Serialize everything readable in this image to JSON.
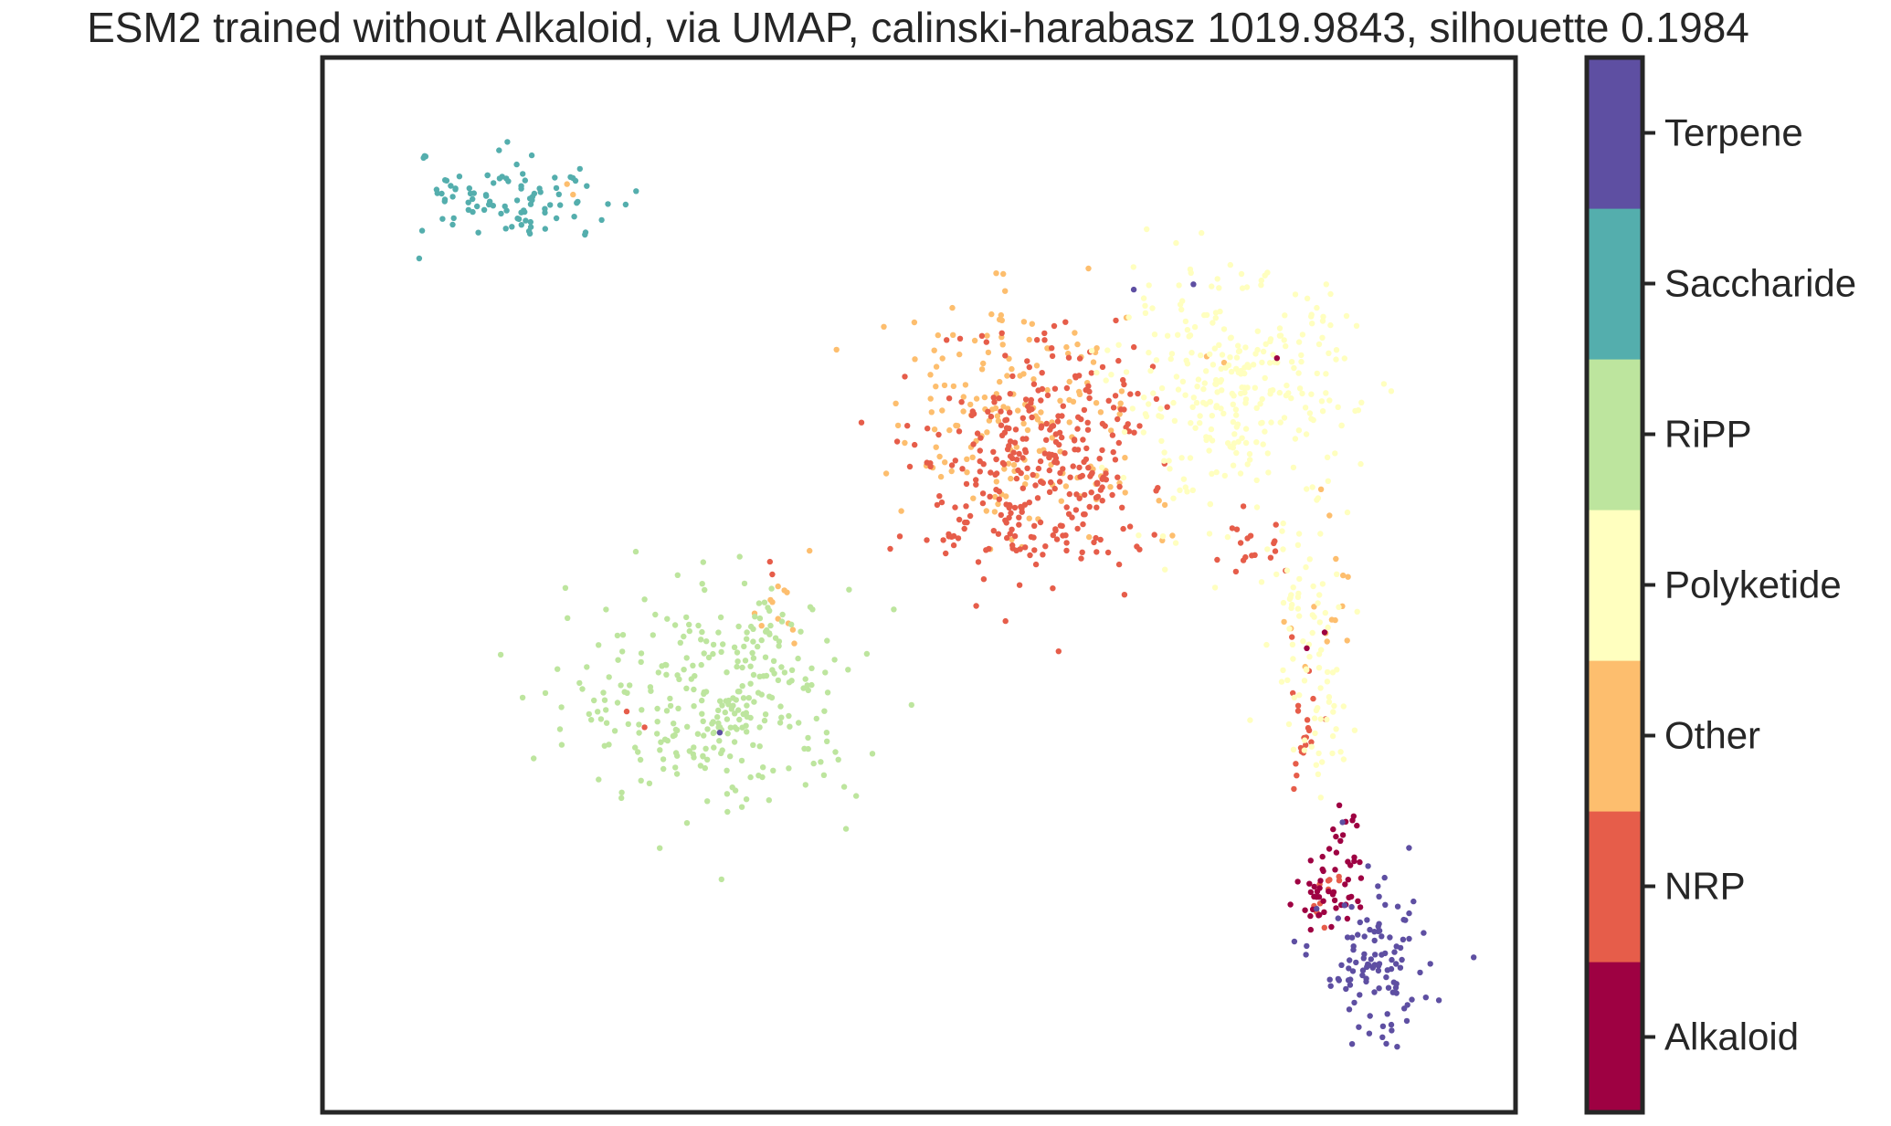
{
  "chart_data": {
    "type": "scatter",
    "title": "ESM2 trained without Alkaloid, via UMAP, calinski-harabasz 1019.9843, silhouette 0.1984",
    "xlabel": "",
    "ylabel": "",
    "xlim": [
      0,
      100
    ],
    "ylim": [
      0,
      100
    ],
    "axes_ticks": false,
    "grid": false,
    "colorbar": {
      "position": "right",
      "categories": [
        "Alkaloid",
        "NRP",
        "Other",
        "Polyketide",
        "RiPP",
        "Saccharide",
        "Terpene"
      ],
      "colors": [
        "#9e0142",
        "#e65d4a",
        "#fdbe6e",
        "#ffffbf",
        "#bde59e",
        "#54aead",
        "#5e4fa2"
      ]
    },
    "series": [
      {
        "name": "Saccharide",
        "color": "#54aead",
        "clusters": [
          {
            "cx": 8.6,
            "cy": 90.6,
            "sx": 0.2,
            "sy": 0.15,
            "n": 3
          },
          {
            "cx": 16.5,
            "cy": 86.5,
            "sx": 4.2,
            "sy": 1.8,
            "n": 90
          }
        ],
        "points": [
          [
            14.8,
            91.2
          ],
          [
            15.5,
            92.0
          ],
          [
            22.0,
            83.2
          ],
          [
            23.4,
            84.6
          ]
        ]
      },
      {
        "name": "Other",
        "color": "#fdbe6e",
        "clusters": [
          {
            "cx": 58.0,
            "cy": 68.0,
            "sx": 5.5,
            "sy": 5.0,
            "n": 140
          },
          {
            "cx": 62.0,
            "cy": 60.0,
            "sx": 4.5,
            "sy": 3.0,
            "n": 40
          },
          {
            "cx": 85.0,
            "cy": 48.0,
            "sx": 2.0,
            "sy": 4.0,
            "n": 15
          },
          {
            "cx": 38.5,
            "cy": 48.5,
            "sx": 1.2,
            "sy": 2.5,
            "n": 12
          }
        ],
        "points": [
          [
            21.0,
            87.0
          ],
          [
            20.5,
            88.0
          ]
        ]
      },
      {
        "name": "NRP",
        "color": "#e65d4a",
        "clusters": [
          {
            "cx": 60.5,
            "cy": 62.5,
            "sx": 4.5,
            "sy": 5.5,
            "n": 300
          },
          {
            "cx": 57.0,
            "cy": 54.5,
            "sx": 4.0,
            "sy": 1.2,
            "n": 40
          },
          {
            "cx": 78.0,
            "cy": 53.0,
            "sx": 2.0,
            "sy": 1.5,
            "n": 18
          },
          {
            "cx": 82.0,
            "cy": 36.0,
            "sx": 0.8,
            "sy": 4.0,
            "n": 20
          },
          {
            "cx": 84.5,
            "cy": 22.0,
            "sx": 1.0,
            "sy": 2.0,
            "n": 10
          }
        ],
        "points": [
          [
            37.5,
            52.2
          ],
          [
            37.7,
            51.0
          ],
          [
            25.5,
            38.0
          ],
          [
            27.0,
            36.5
          ]
        ]
      },
      {
        "name": "Polyketide",
        "color": "#ffffbf",
        "clusters": [
          {
            "cx": 76.5,
            "cy": 68.0,
            "sx": 5.0,
            "sy": 5.5,
            "n": 300
          },
          {
            "cx": 82.5,
            "cy": 46.0,
            "sx": 2.0,
            "sy": 5.0,
            "n": 60
          },
          {
            "cx": 84.0,
            "cy": 36.0,
            "sx": 1.5,
            "sy": 3.5,
            "n": 25
          }
        ]
      },
      {
        "name": "RiPP",
        "color": "#bde59e",
        "clusters": [
          {
            "cx": 33.0,
            "cy": 39.0,
            "sx": 6.0,
            "sy": 5.0,
            "n": 280
          },
          {
            "cx": 37.0,
            "cy": 44.5,
            "sx": 1.5,
            "sy": 3.0,
            "n": 30
          }
        ]
      },
      {
        "name": "Alkaloid",
        "color": "#9e0142",
        "clusters": [
          {
            "cx": 84.5,
            "cy": 20.5,
            "sx": 1.5,
            "sy": 1.8,
            "n": 45
          },
          {
            "cx": 85.5,
            "cy": 26.0,
            "sx": 0.8,
            "sy": 1.5,
            "n": 12
          }
        ],
        "points": [
          [
            82.5,
            44.0
          ],
          [
            80.0,
            71.5
          ],
          [
            84.0,
            45.5
          ]
        ]
      },
      {
        "name": "Terpene",
        "color": "#5e4fa2",
        "clusters": [
          {
            "cx": 88.3,
            "cy": 13.5,
            "sx": 2.3,
            "sy": 3.5,
            "n": 110
          }
        ],
        "points": [
          [
            33.3,
            36.0
          ],
          [
            73.0,
            78.5
          ],
          [
            68.0,
            78.0
          ],
          [
            85.5,
            27.5
          ]
        ]
      }
    ]
  }
}
